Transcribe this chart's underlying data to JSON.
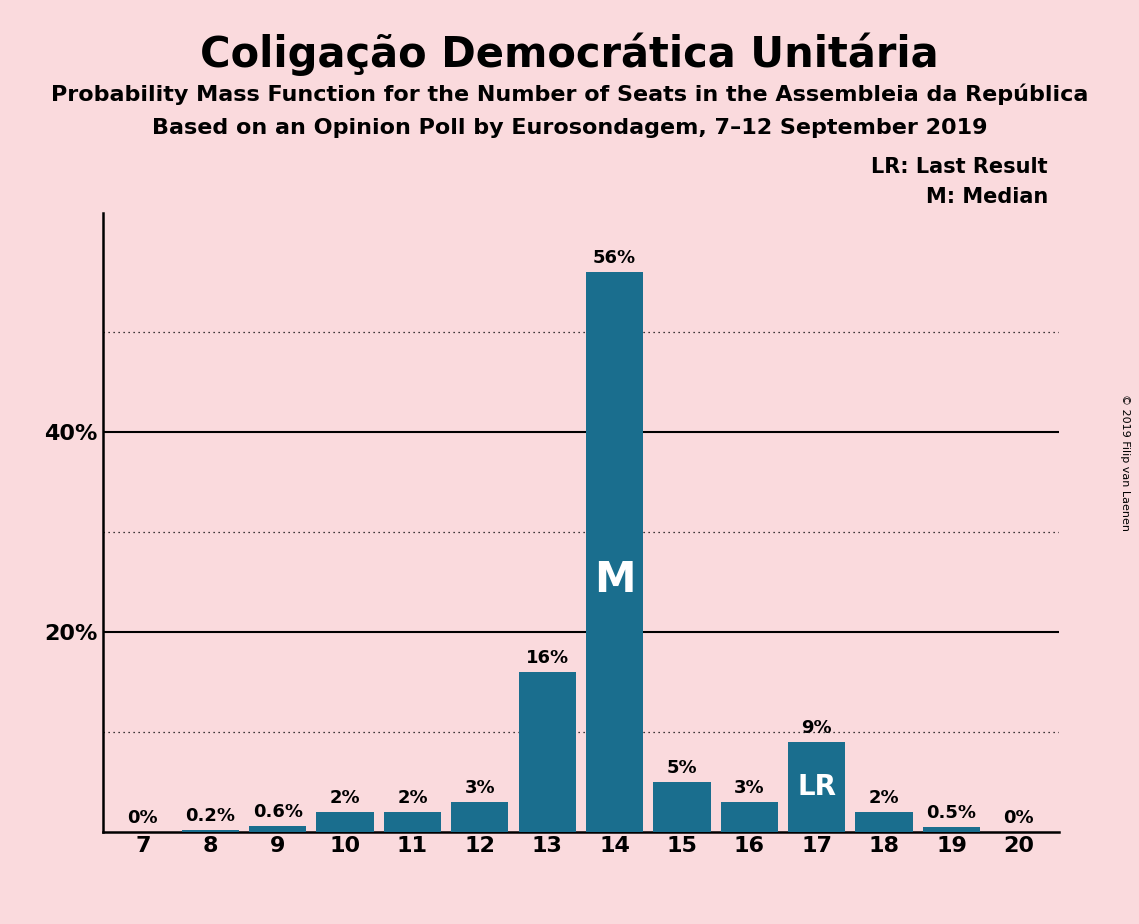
{
  "title": "Coligação Democrática Unitária",
  "subtitle1": "Probability Mass Function for the Number of Seats in the Assembleia da República",
  "subtitle2": "Based on an Opinion Poll by Eurosondagem, 7–12 September 2019",
  "copyright": "© 2019 Filip van Laenen",
  "categories": [
    7,
    8,
    9,
    10,
    11,
    12,
    13,
    14,
    15,
    16,
    17,
    18,
    19,
    20
  ],
  "values": [
    0,
    0.2,
    0.6,
    2,
    2,
    3,
    16,
    56,
    5,
    3,
    9,
    2,
    0.5,
    0
  ],
  "bar_color": "#1a6e8e",
  "background_color": "#fadadd",
  "median_seat": 14,
  "lr_seat": 17,
  "legend_lr": "LR: Last Result",
  "legend_m": "M: Median",
  "solid_gridlines": [
    20,
    40
  ],
  "dotted_gridlines": [
    10,
    30,
    50
  ],
  "ylim": [
    0,
    62
  ],
  "title_fontsize": 30,
  "subtitle_fontsize": 16,
  "tick_fontsize": 16,
  "label_fontsize": 13,
  "legend_fontsize": 15
}
